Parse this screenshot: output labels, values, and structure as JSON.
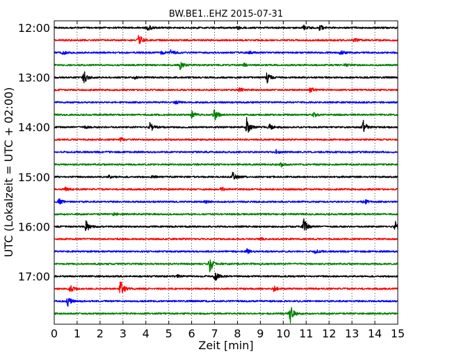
{
  "chart_data": {
    "type": "line",
    "title": "BW.BE1..EHZ 2015-07-31",
    "xlabel": "Zeit  [min]",
    "ylabel": "UTC (Lokalzeit = UTC + 02:00)",
    "xlim": [
      0,
      15
    ],
    "x_ticks": [
      "0",
      "1",
      "2",
      "3",
      "4",
      "5",
      "6",
      "7",
      "8",
      "9",
      "10",
      "11",
      "12",
      "13",
      "14",
      "15"
    ],
    "y_ticks": [
      "12:00",
      "13:00",
      "14:00",
      "15:00",
      "16:00",
      "17:00"
    ],
    "y_tick_trace_index": [
      0,
      4,
      8,
      12,
      16,
      20
    ],
    "grid": "vertical dotted at each minute",
    "trace_interval_minutes": 15,
    "colors": [
      "#000000",
      "#ff0000",
      "#0000ff",
      "#008000"
    ],
    "series": [
      {
        "start": "12:00",
        "events": [
          [
            4.1,
            0.4
          ],
          [
            8.0,
            0.25
          ],
          [
            10.9,
            0.3
          ],
          [
            11.6,
            0.4
          ]
        ]
      },
      {
        "start": "12:15",
        "events": [
          [
            3.7,
            0.9
          ],
          [
            13.1,
            0.3
          ]
        ]
      },
      {
        "start": "12:30",
        "events": [
          [
            0.4,
            0.25
          ],
          [
            4.7,
            0.25
          ],
          [
            5.1,
            0.45
          ],
          [
            8.5,
            0.2
          ],
          [
            12.5,
            0.3
          ]
        ]
      },
      {
        "start": "12:45",
        "events": [
          [
            5.5,
            0.6
          ],
          [
            8.3,
            0.2
          ],
          [
            12.7,
            0.2
          ]
        ]
      },
      {
        "start": "13:00",
        "events": [
          [
            1.3,
            1.0
          ],
          [
            9.3,
            0.7
          ],
          [
            3.5,
            0.2
          ]
        ]
      },
      {
        "start": "13:15",
        "events": [
          [
            8.1,
            0.3
          ],
          [
            11.2,
            0.5
          ]
        ]
      },
      {
        "start": "13:30",
        "events": [
          [
            5.3,
            0.2
          ]
        ]
      },
      {
        "start": "13:45",
        "events": [
          [
            6.0,
            0.5
          ],
          [
            7.0,
            0.85
          ],
          [
            11.3,
            0.4
          ]
        ]
      },
      {
        "start": "14:00",
        "events": [
          [
            1.3,
            0.25
          ],
          [
            4.2,
            0.8
          ],
          [
            8.4,
            1.3
          ],
          [
            9.4,
            0.4
          ],
          [
            13.5,
            0.9
          ]
        ]
      },
      {
        "start": "14:15",
        "events": [
          [
            2.9,
            0.3
          ]
        ]
      },
      {
        "start": "14:30",
        "events": [
          [
            9.7,
            0.25
          ]
        ]
      },
      {
        "start": "14:45",
        "events": [
          [
            9.9,
            0.3
          ]
        ]
      },
      {
        "start": "15:00",
        "events": [
          [
            2.4,
            0.2
          ],
          [
            4.3,
            0.2
          ],
          [
            7.8,
            0.6
          ]
        ]
      },
      {
        "start": "15:15",
        "events": [
          [
            0.5,
            0.25
          ],
          [
            7.3,
            0.3
          ]
        ]
      },
      {
        "start": "15:30",
        "events": [
          [
            0.2,
            0.5
          ],
          [
            6.6,
            0.3
          ],
          [
            13.5,
            0.5
          ]
        ]
      },
      {
        "start": "15:45",
        "events": [
          [
            2.6,
            0.2
          ]
        ]
      },
      {
        "start": "16:00",
        "events": [
          [
            1.4,
            0.85
          ],
          [
            10.9,
            1.1
          ],
          [
            14.9,
            0.7
          ]
        ]
      },
      {
        "start": "16:15",
        "events": [
          [
            9.0,
            0.15
          ]
        ]
      },
      {
        "start": "16:30",
        "events": [
          [
            8.4,
            0.4
          ],
          [
            11.4,
            0.3
          ]
        ]
      },
      {
        "start": "16:45",
        "events": [
          [
            6.8,
            1.2
          ]
        ]
      },
      {
        "start": "17:00",
        "events": [
          [
            7.0,
            0.8
          ],
          [
            5.4,
            0.15
          ]
        ]
      },
      {
        "start": "17:15",
        "events": [
          [
            0.7,
            0.5
          ],
          [
            2.9,
            1.4
          ],
          [
            9.6,
            0.35
          ]
        ]
      },
      {
        "start": "17:30",
        "events": [
          [
            0.6,
            0.65
          ]
        ]
      },
      {
        "start": "17:45",
        "events": [
          [
            10.3,
            1.5
          ]
        ]
      }
    ]
  }
}
